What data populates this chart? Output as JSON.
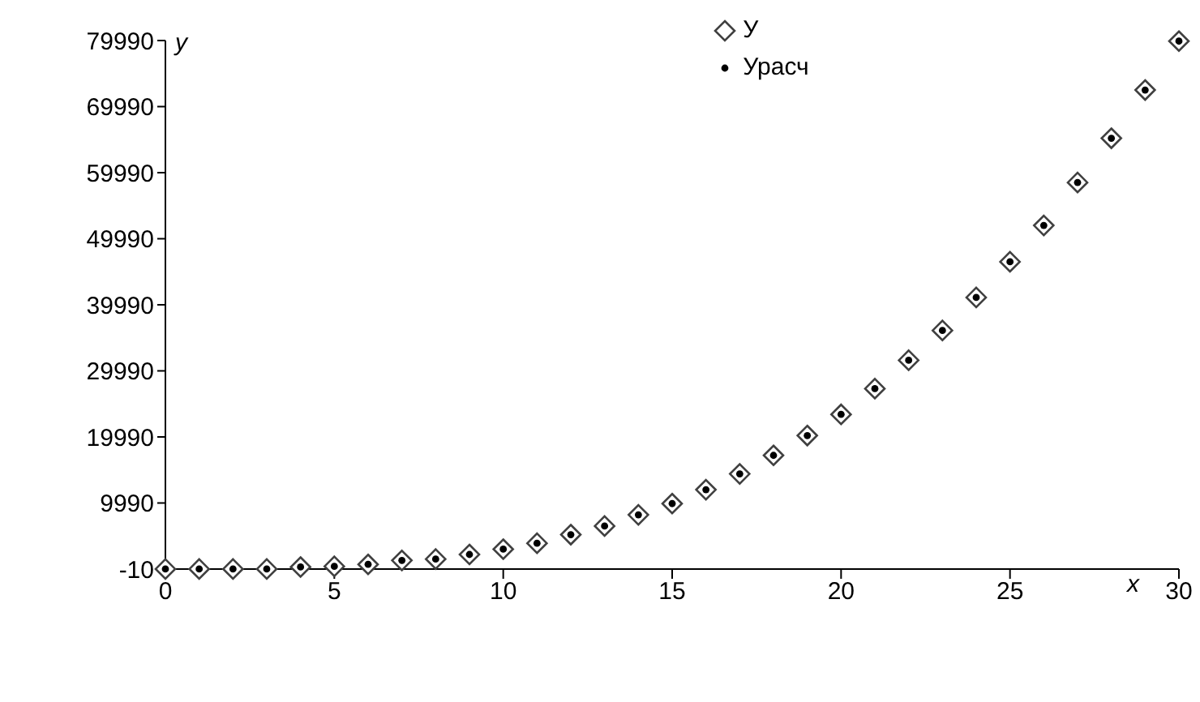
{
  "chart_data": {
    "type": "scatter",
    "xlabel": "x",
    "ylabel": "y",
    "x": [
      0,
      1,
      2,
      3,
      4,
      5,
      6,
      7,
      8,
      9,
      10,
      11,
      12,
      13,
      14,
      15,
      16,
      17,
      18,
      19,
      20,
      21,
      22,
      23,
      24,
      25,
      26,
      27,
      28,
      29,
      30
    ],
    "series": [
      {
        "name": "У",
        "color": "#404040",
        "marker": "diamond",
        "values": [
          0,
          0,
          0,
          0,
          300,
          400,
          700,
          1300,
          1500,
          2200,
          3000,
          3900,
          5200,
          6500,
          8200,
          9900,
          12000,
          14400,
          17200,
          20200,
          23400,
          27300,
          31600,
          36100,
          41100,
          46500,
          52000,
          58500,
          65200,
          72500,
          79900
        ]
      },
      {
        "name": "Урасч",
        "color": "#000000",
        "marker": "circle",
        "values": [
          0,
          0,
          0,
          0,
          300,
          400,
          700,
          1300,
          1500,
          2200,
          3000,
          3900,
          5200,
          6500,
          8200,
          9900,
          12000,
          14400,
          17200,
          20200,
          23400,
          27300,
          31600,
          36100,
          41100,
          46500,
          52000,
          58500,
          65200,
          72500,
          79900
        ]
      }
    ],
    "xlim": [
      0,
      30
    ],
    "xticks": [
      0,
      5,
      10,
      15,
      20,
      25,
      30
    ],
    "ylim": [
      -10,
      79990
    ],
    "yticks": [
      -10,
      9990,
      19990,
      29990,
      39990,
      49990,
      59990,
      69990,
      79990
    ],
    "grid": false,
    "legend": "top"
  }
}
